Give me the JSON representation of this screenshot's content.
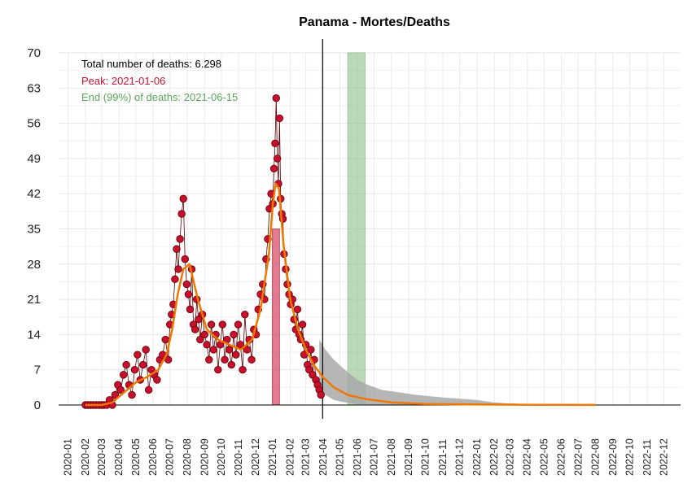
{
  "chart_data": {
    "type": "line",
    "title": "Panama - Mortes/Deaths",
    "xlabel": "",
    "ylabel": "",
    "ylim": [
      0,
      70
    ],
    "y_ticks": [
      0,
      7,
      14,
      21,
      28,
      35,
      42,
      49,
      56,
      63,
      70
    ],
    "x_range": [
      "2019-12-15",
      "2022-12-31"
    ],
    "x_tick_labels": [
      "2020-01",
      "2020-02",
      "2020-03",
      "2020-04",
      "2020-05",
      "2020-06",
      "2020-07",
      "2020-08",
      "2020-09",
      "2020-10",
      "2020-11",
      "2020-12",
      "2021-01",
      "2021-02",
      "2021-03",
      "2021-04",
      "2021-05",
      "2021-06",
      "2021-07",
      "2021-08",
      "2021-09",
      "2021-10",
      "2021-11",
      "2021-12",
      "2022-01",
      "2022-02",
      "2022-03",
      "2022-04",
      "2022-05",
      "2022-06",
      "2022-07",
      "2022-08",
      "2022-09",
      "2022-10",
      "2022-11",
      "2022-12"
    ],
    "grid": true,
    "annotations": {
      "total": "Total number of deaths: 6.298",
      "peak": "Peak: 2021-01-06",
      "end": "End (99%) of deaths: 2021-06-15"
    },
    "colors": {
      "points": "#c8102e",
      "point_edge": "#5a0000",
      "smooth": "#f07800",
      "peak_band": "#d9506a",
      "end_band": "#8fbf8a",
      "forecast_band": "#a9a9a9",
      "peak_text": "#c8102e",
      "end_text": "#5aa55a"
    },
    "today_marker": "2021-03-31",
    "peak_band": [
      "2020-12-31",
      "2021-01-13"
    ],
    "end_band": [
      "2021-05-15",
      "2021-06-15"
    ],
    "smooth_series": {
      "name": "",
      "x": [
        "2020-02-01",
        "2020-03-01",
        "2020-03-20",
        "2020-04-10",
        "2020-05-01",
        "2020-05-20",
        "2020-06-10",
        "2020-06-25",
        "2020-07-05",
        "2020-07-15",
        "2020-07-25",
        "2020-08-05",
        "2020-08-20",
        "2020-09-05",
        "2020-09-25",
        "2020-10-15",
        "2020-11-05",
        "2020-11-25",
        "2020-12-10",
        "2020-12-25",
        "2021-01-01",
        "2021-01-06",
        "2021-01-12",
        "2021-01-20",
        "2021-02-01",
        "2021-02-15",
        "2021-03-01",
        "2021-03-15",
        "2021-04-01",
        "2021-04-20",
        "2021-05-15",
        "2021-06-15",
        "2021-08-01",
        "2021-10-01",
        "2022-01-01",
        "2022-04-01",
        "2022-08-01"
      ],
      "values": [
        0,
        0,
        0.5,
        2.5,
        4.5,
        5.5,
        7,
        10,
        15,
        22,
        27,
        28,
        21,
        15,
        13,
        12,
        11,
        13,
        19,
        30,
        40,
        44,
        43,
        32,
        21,
        15,
        11,
        8,
        5.5,
        3.5,
        2,
        1.2,
        0.5,
        0.2,
        0.1,
        0.05,
        0.02
      ]
    },
    "forecast_band": {
      "x": [
        "2021-03-25",
        "2021-04-05",
        "2021-04-20",
        "2021-05-10",
        "2021-06-01",
        "2021-06-20",
        "2021-07-15",
        "2021-08-15",
        "2021-09-15",
        "2021-11-01",
        "2022-01-01",
        "2022-02-01",
        "2022-03-01",
        "2022-04-01",
        "2022-06-01",
        "2022-08-01"
      ],
      "upper": [
        13,
        11,
        9,
        7,
        5,
        4,
        3,
        2.5,
        2,
        1.5,
        1,
        0.5,
        0.3,
        0.2,
        0.1,
        0.05
      ],
      "lower": [
        3,
        2,
        1,
        0.5,
        0.2,
        0.1,
        0,
        0,
        0,
        0,
        0,
        0,
        0,
        0,
        0,
        0
      ]
    },
    "daily_points": {
      "name": "",
      "x": [
        "2020-02-01",
        "2020-02-05",
        "2020-02-10",
        "2020-02-15",
        "2020-02-20",
        "2020-02-25",
        "2020-03-01",
        "2020-03-05",
        "2020-03-10",
        "2020-03-15",
        "2020-03-20",
        "2020-03-25",
        "2020-03-30",
        "2020-04-04",
        "2020-04-09",
        "2020-04-14",
        "2020-04-19",
        "2020-04-24",
        "2020-04-29",
        "2020-05-04",
        "2020-05-09",
        "2020-05-14",
        "2020-05-19",
        "2020-05-24",
        "2020-05-29",
        "2020-06-03",
        "2020-06-08",
        "2020-06-13",
        "2020-06-18",
        "2020-06-23",
        "2020-06-28",
        "2020-07-01",
        "2020-07-04",
        "2020-07-07",
        "2020-07-10",
        "2020-07-13",
        "2020-07-16",
        "2020-07-19",
        "2020-07-22",
        "2020-07-25",
        "2020-07-28",
        "2020-07-31",
        "2020-08-03",
        "2020-08-06",
        "2020-08-09",
        "2020-08-12",
        "2020-08-15",
        "2020-08-18",
        "2020-08-21",
        "2020-08-24",
        "2020-08-28",
        "2020-09-01",
        "2020-09-05",
        "2020-09-09",
        "2020-09-13",
        "2020-09-17",
        "2020-09-21",
        "2020-09-25",
        "2020-09-29",
        "2020-10-03",
        "2020-10-07",
        "2020-10-11",
        "2020-10-15",
        "2020-10-19",
        "2020-10-23",
        "2020-10-27",
        "2020-10-31",
        "2020-11-04",
        "2020-11-08",
        "2020-11-12",
        "2020-11-16",
        "2020-11-20",
        "2020-11-24",
        "2020-11-28",
        "2020-12-02",
        "2020-12-06",
        "2020-12-10",
        "2020-12-14",
        "2020-12-17",
        "2020-12-20",
        "2020-12-23",
        "2020-12-26",
        "2020-12-29",
        "2021-01-01",
        "2021-01-03",
        "2021-01-05",
        "2021-01-07",
        "2021-01-09",
        "2021-01-11",
        "2021-01-13",
        "2021-01-15",
        "2021-01-17",
        "2021-01-19",
        "2021-01-21",
        "2021-01-24",
        "2021-01-27",
        "2021-01-30",
        "2021-02-02",
        "2021-02-05",
        "2021-02-08",
        "2021-02-11",
        "2021-02-14",
        "2021-02-17",
        "2021-02-20",
        "2021-02-23",
        "2021-02-26",
        "2021-03-01",
        "2021-03-04",
        "2021-03-07",
        "2021-03-10",
        "2021-03-13",
        "2021-03-16",
        "2021-03-19",
        "2021-03-22",
        "2021-03-25",
        "2021-03-28"
      ],
      "values": [
        0,
        0,
        0,
        0,
        0,
        0,
        0,
        0,
        0,
        1,
        0,
        2,
        4,
        3,
        6,
        8,
        4,
        2,
        7,
        10,
        5,
        8,
        11,
        3,
        7,
        6,
        5,
        9,
        10,
        13,
        9,
        16,
        18,
        20,
        25,
        31,
        27,
        33,
        38,
        41,
        29,
        24,
        22,
        19,
        27,
        16,
        15,
        21,
        17,
        13,
        18,
        14,
        12,
        9,
        16,
        11,
        14,
        7,
        12,
        16,
        9,
        13,
        11,
        8,
        14,
        10,
        16,
        12,
        7,
        18,
        11,
        13,
        9,
        15,
        14,
        19,
        22,
        24,
        21,
        29,
        33,
        39,
        42,
        40,
        47,
        52,
        61,
        49,
        44,
        57,
        41,
        38,
        37,
        30,
        27,
        24,
        22,
        20,
        21,
        17,
        15,
        19,
        14,
        13,
        16,
        10,
        12,
        8,
        7,
        11,
        6,
        9,
        5,
        4,
        3,
        2
      ]
    }
  }
}
